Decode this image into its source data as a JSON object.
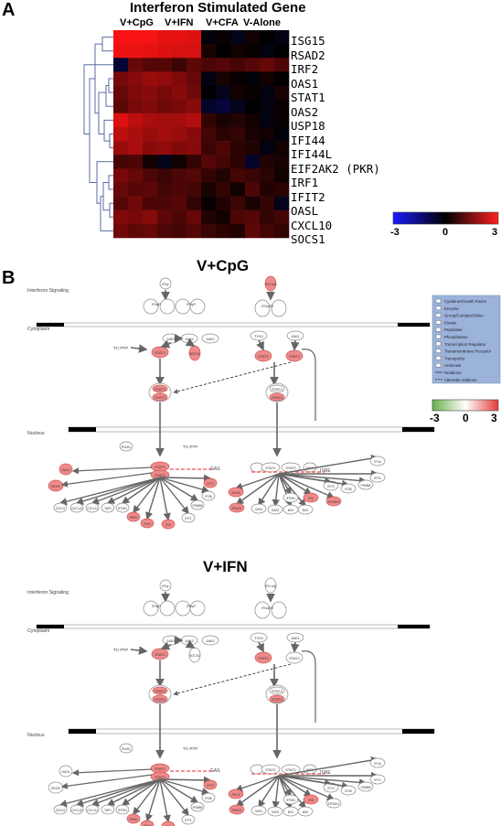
{
  "panel_a": {
    "letter": "A",
    "title": "Interferon Stimulated Gene",
    "conditions": [
      "V+CpG",
      "V+IFN",
      "V+CFA",
      "V-Alone"
    ],
    "genes": [
      "ISG15",
      "RSAD2",
      "IRF2",
      "OAS1",
      "STAT1",
      "OAS2",
      "USP18",
      "IFI44",
      "IFI44L",
      "EIF2AK2 (PKR)",
      "IRF1",
      "IFIT2",
      "OASL",
      "CXCL10",
      "SOCS1"
    ],
    "colorbar": {
      "min_label": "-3",
      "mid_label": "0",
      "max_label": "3",
      "low_color": "#1a1aff",
      "mid_color": "#000000",
      "high_color": "#ff2020"
    },
    "chart_data": {
      "type": "heatmap",
      "title": "Interferon Stimulated Gene",
      "columns_per_condition": 3,
      "range": [
        -3,
        3
      ],
      "rows": [
        [
          2.9,
          2.9,
          2.9,
          2.7,
          2.7,
          2.6,
          -0.1,
          0.1,
          -0.3,
          0.2,
          0.0,
          -0.2
        ],
        [
          2.8,
          2.8,
          2.7,
          2.6,
          2.5,
          2.5,
          0.3,
          0.0,
          0.2,
          0.1,
          -0.2,
          0.0
        ],
        [
          -0.6,
          1.2,
          1.0,
          1.0,
          0.7,
          1.1,
          0.9,
          1.0,
          0.8,
          1.0,
          1.2,
          0.9
        ],
        [
          1.4,
          1.6,
          1.8,
          1.7,
          1.5,
          1.2,
          -0.2,
          0.3,
          0.1,
          -0.1,
          0.2,
          0.0
        ],
        [
          1.2,
          1.5,
          1.6,
          1.4,
          1.6,
          1.3,
          0.0,
          -0.3,
          0.2,
          0.1,
          -0.2,
          0.3
        ],
        [
          1.1,
          1.4,
          1.5,
          1.3,
          1.4,
          1.6,
          -0.5,
          -0.7,
          -0.3,
          0.0,
          -0.2,
          0.1
        ],
        [
          2.6,
          2.2,
          2.0,
          1.9,
          1.9,
          2.1,
          0.6,
          0.3,
          0.4,
          0.2,
          -0.2,
          0.1
        ],
        [
          2.2,
          2.0,
          1.8,
          1.9,
          1.8,
          1.6,
          0.8,
          0.5,
          0.6,
          0.3,
          0.2,
          -0.1
        ],
        [
          1.8,
          2.0,
          1.6,
          1.7,
          1.5,
          1.6,
          0.7,
          0.9,
          0.5,
          0.4,
          -0.2,
          0.2
        ],
        [
          0.8,
          0.9,
          0.2,
          -0.3,
          0.2,
          0.6,
          1.0,
          0.8,
          0.5,
          -0.5,
          0.4,
          0.3
        ],
        [
          1.4,
          1.2,
          0.9,
          0.7,
          0.9,
          1.0,
          0.6,
          0.4,
          0.8,
          0.7,
          0.5,
          0.2
        ],
        [
          1.2,
          1.0,
          1.1,
          0.8,
          0.9,
          0.8,
          0.3,
          0.6,
          0.2,
          0.9,
          0.4,
          0.5
        ],
        [
          1.0,
          1.3,
          0.9,
          0.9,
          1.0,
          0.6,
          0.1,
          0.4,
          0.7,
          0.3,
          0.6,
          -0.3
        ],
        [
          1.5,
          1.4,
          1.6,
          1.1,
          0.9,
          1.2,
          0.4,
          0.2,
          0.9,
          1.0,
          0.6,
          0.8
        ],
        [
          1.3,
          1.1,
          1.2,
          0.9,
          0.8,
          1.0,
          0.7,
          0.5,
          0.4,
          1.1,
          0.8,
          0.6
        ]
      ]
    }
  },
  "panel_b": {
    "letter": "B",
    "networks": [
      {
        "title": "V+CpG",
        "signaling_label": "Interferon Signaling",
        "cytoplasm_label": "Cytoplasm",
        "nucleus_label": "Nucleus",
        "highlight": {
          "IFNG": false,
          "IFNAB": true,
          "STAT1_cyto": true,
          "SOCS1": true,
          "STAT1_right": true,
          "STAT2_right": true,
          "STAT1_dimer": true,
          "STAT1_nuc": true,
          "OASL": true,
          "ISG20": true,
          "PRKD": true,
          "IFI44": true,
          "IFIT2": true,
          "RSAD2": true,
          "IFI6": true,
          "ISG15": true,
          "ISG_right": true,
          "EIF2AK2": true
        }
      },
      {
        "title": "V+IFN",
        "signaling_label": "Interferon Signaling",
        "cytoplasm_label": "Cytoplasm",
        "nucleus_label": "Nucleus",
        "highlight": {
          "IFNG": false,
          "IFNAB": false,
          "STAT1_cyto": true,
          "SOCS1": false,
          "STAT1_right": true,
          "STAT2_right": false,
          "STAT1_dimer": true,
          "STAT1_nuc": true,
          "OASL": false,
          "ISG20": false,
          "PRKD": true,
          "IFI44": true,
          "IFIT2": true,
          "RSAD2": true,
          "IFI6": true,
          "ISG15": true,
          "ISG_right": true,
          "EIF2AK2": false
        }
      }
    ],
    "legend": {
      "items": [
        "Cytokine/Growth Factor",
        "Enzyme",
        "Group/Complex/Other",
        "Kinase",
        "Peptidase",
        "Phosphatase",
        "Transcription Regulator",
        "Transmembrane Receptor",
        "Transporter",
        "Unknown",
        "Relations",
        "Alternate relations"
      ]
    },
    "network_colorbar": {
      "min_label": "-3",
      "mid_label": "0",
      "max_label": "3",
      "low_color": "#6ab04c",
      "high_color": "#e23b3b"
    },
    "node_labels": {
      "IFNG": "IFNγ",
      "IFNAB": "IFN α/β",
      "IFNGR": "IFNγR",
      "IFNAR": "IFNα/βR",
      "JAK1": "JAK1",
      "JAK2": "JAK2",
      "TYK2": "TYK2",
      "TCPTP": "TC-PTP",
      "STAT1": "STAT1",
      "STAT2": "STAT2",
      "SOCS1": "SOCS1",
      "PIAS1": "PIAS1",
      "GAS": "GAS",
      "ISRE": "ISRE",
      "IRF9": "IRF9",
      "OASL": "OASL",
      "ISG20": "ISG20",
      "CXCL9": "CXCL9",
      "CXCL10": "CXCL10",
      "CXCL11": "CXCL11",
      "TAP1": "TAP1",
      "IFITM1": "IFITM1",
      "PRKD": "PRKD",
      "IFI44": "IFI44",
      "IFIT2": "IFIT2",
      "IFI35": "IFI35",
      "PSMB8": "PSMB8",
      "IFIT1": "IFIT1",
      "IFI16": "IFI16",
      "IFIT3": "IFIT3",
      "IFI6": "IFI6",
      "RSAD2": "RSAD2",
      "ISG15": "ISG15",
      "MX1": "MX1",
      "MX2": "MX2",
      "OAS1": "OAS1",
      "OAS2": "OAS2",
      "EIF2AK2": "EIF2AK2"
    }
  }
}
